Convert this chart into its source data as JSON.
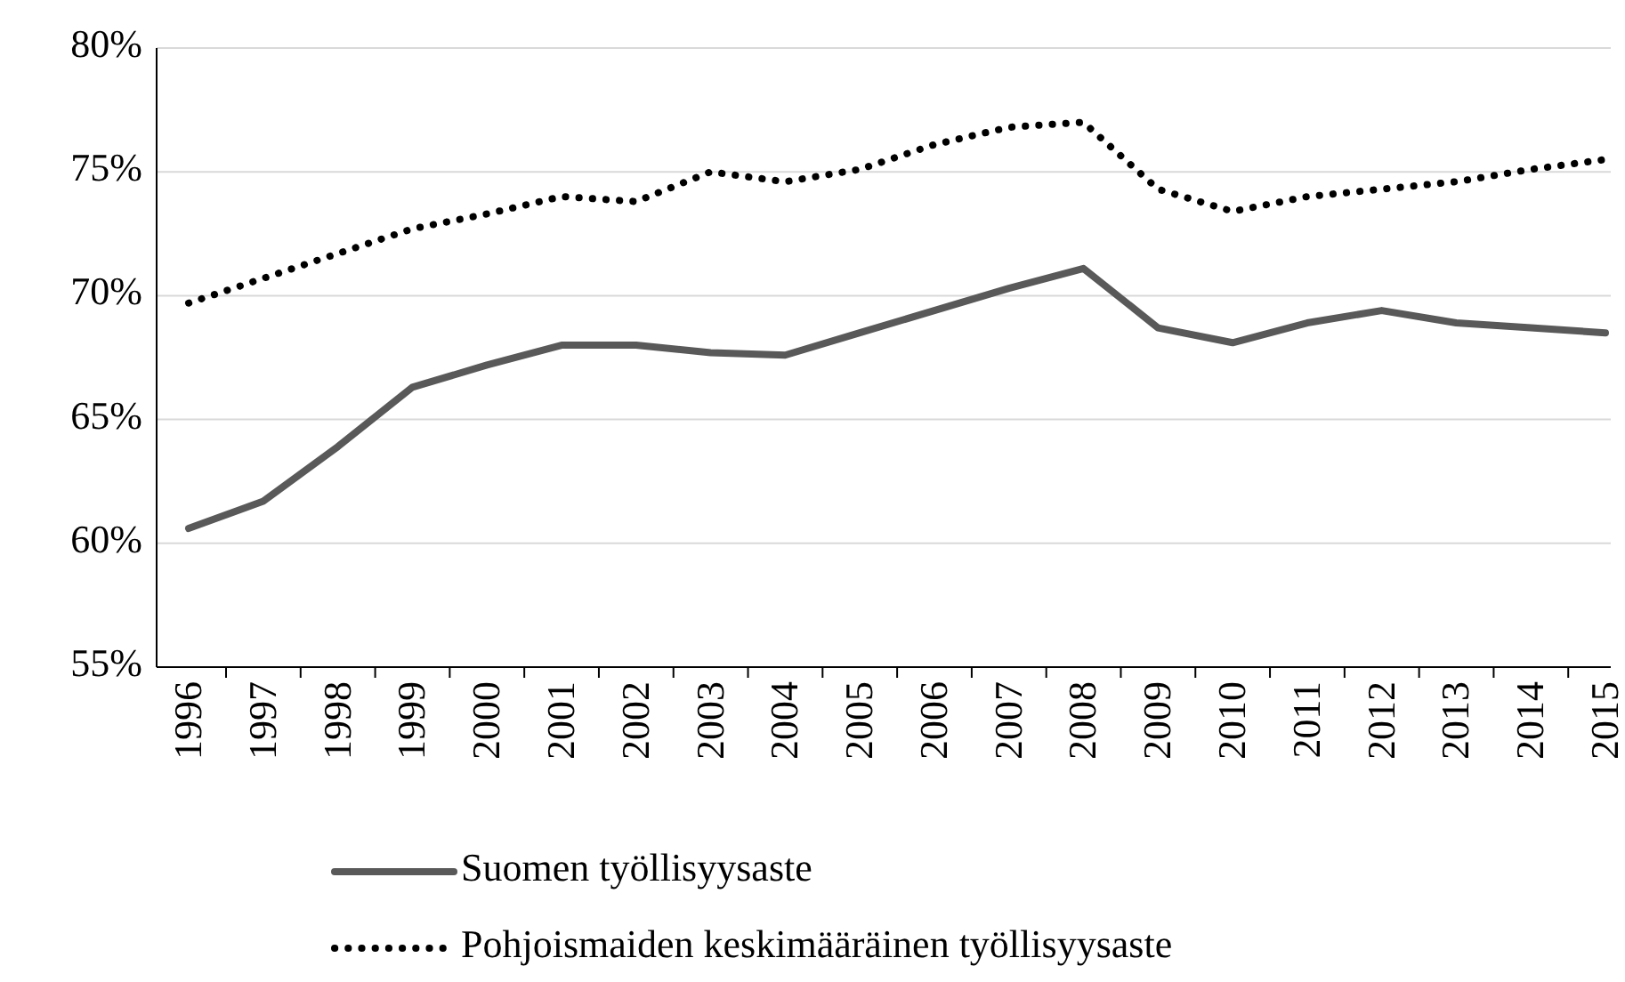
{
  "chart_data": {
    "type": "line",
    "categories": [
      "1996",
      "1997",
      "1998",
      "1999",
      "2000",
      "2001",
      "2002",
      "2003",
      "2004",
      "2005",
      "2006",
      "2007",
      "2008",
      "2009",
      "2010",
      "2011",
      "2012",
      "2013",
      "2014",
      "2015"
    ],
    "series": [
      {
        "name": "Suomen työllisyysaste",
        "color": "#595959",
        "line_style": "solid",
        "values": [
          60.6,
          61.7,
          63.9,
          66.3,
          67.2,
          68.0,
          68.0,
          67.7,
          67.6,
          68.5,
          69.4,
          70.3,
          71.1,
          68.7,
          68.1,
          68.9,
          69.4,
          68.9,
          68.7,
          68.5
        ]
      },
      {
        "name": "Pohjoismaiden keskimääräinen työllisyysaste",
        "color": "#000000",
        "line_style": "dotted",
        "values": [
          69.7,
          70.7,
          71.7,
          72.7,
          73.3,
          74.0,
          73.8,
          75.0,
          74.6,
          75.1,
          76.1,
          76.8,
          77.0,
          74.3,
          73.4,
          74.0,
          74.3,
          74.6,
          75.1,
          75.5
        ]
      }
    ],
    "ylim": [
      55,
      80
    ],
    "yticks": [
      {
        "value": 55,
        "label": "55%"
      },
      {
        "value": 60,
        "label": "60%"
      },
      {
        "value": 65,
        "label": "65%"
      },
      {
        "value": 70,
        "label": "70%"
      },
      {
        "value": 75,
        "label": "75%"
      },
      {
        "value": 80,
        "label": "80%"
      }
    ],
    "grid": "y",
    "legend": "bottom",
    "marker": "none"
  }
}
